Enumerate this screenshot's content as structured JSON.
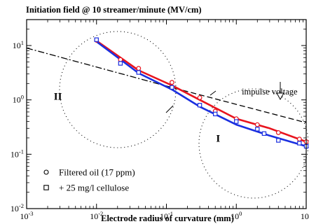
{
  "chart_data": {
    "type": "scatter",
    "title": "Initiation field @ 10 streamer/minute (MV/cm)",
    "xlabel": "Electrode radius of curvature (mm)",
    "ylabel": "",
    "x_scale": "log",
    "y_scale": "log",
    "xlim": [
      0.001,
      10
    ],
    "ylim": [
      0.01,
      30
    ],
    "x_ticks": [
      "10-3",
      "10-2",
      "10-1",
      "100",
      "101"
    ],
    "y_ticks": [
      "10-2",
      "10-1",
      "100",
      "101"
    ],
    "grid": false,
    "legend_position": "bottom-left",
    "series": [
      {
        "name": "Filtered oil (17 ppm)",
        "marker": "circle",
        "color": "#e8141e",
        "points": [
          {
            "x": 0.01,
            "y": 12.5
          },
          {
            "x": 0.022,
            "y": 5.5
          },
          {
            "x": 0.04,
            "y": 3.8
          },
          {
            "x": 0.12,
            "y": 2.1
          },
          {
            "x": 0.3,
            "y": 1.1
          },
          {
            "x": 0.5,
            "y": 0.62
          },
          {
            "x": 1.0,
            "y": 0.45
          },
          {
            "x": 2.0,
            "y": 0.35
          },
          {
            "x": 4.0,
            "y": 0.25
          },
          {
            "x": 8.0,
            "y": 0.19
          },
          {
            "x": 10.0,
            "y": 0.17
          }
        ],
        "fit": [
          [
            0.01,
            12.2
          ],
          [
            0.04,
            3.5
          ],
          [
            0.12,
            1.85
          ],
          [
            0.3,
            1.0
          ],
          [
            1.0,
            0.45
          ],
          [
            3.0,
            0.3
          ],
          [
            10.0,
            0.17
          ]
        ]
      },
      {
        "name": "+ 25 mg/l cellulose",
        "marker": "square",
        "color": "#1a2fe0",
        "points": [
          {
            "x": 0.01,
            "y": 12.8
          },
          {
            "x": 0.022,
            "y": 4.7
          },
          {
            "x": 0.04,
            "y": 3.2
          },
          {
            "x": 0.12,
            "y": 1.7
          },
          {
            "x": 0.3,
            "y": 0.8
          },
          {
            "x": 0.5,
            "y": 0.55
          },
          {
            "x": 1.0,
            "y": 0.4
          },
          {
            "x": 2.0,
            "y": 0.29
          },
          {
            "x": 2.5,
            "y": 0.24
          },
          {
            "x": 4.0,
            "y": 0.18
          },
          {
            "x": 8.0,
            "y": 0.16
          },
          {
            "x": 10.0,
            "y": 0.14
          }
        ],
        "fit": [
          [
            0.01,
            11.8
          ],
          [
            0.04,
            3.1
          ],
          [
            0.12,
            1.55
          ],
          [
            0.3,
            0.75
          ],
          [
            1.0,
            0.35
          ],
          [
            3.0,
            0.22
          ],
          [
            10.0,
            0.14
          ]
        ]
      }
    ],
    "reference_lines": [
      {
        "style": "dash-dot",
        "points": [
          [
            0.001,
            9.0
          ],
          [
            0.1,
            1.8
          ]
        ]
      },
      {
        "style": "dash",
        "points": [
          [
            0.1,
            1.8
          ],
          [
            10.0,
            0.38
          ]
        ]
      }
    ],
    "annotations": [
      {
        "text": "impulse voltage",
        "x": 3.0,
        "y": 1.25
      },
      {
        "text": "II",
        "x": 0.0028,
        "y": 1.0
      },
      {
        "text": "I",
        "x": 0.55,
        "y": 0.17
      }
    ]
  }
}
